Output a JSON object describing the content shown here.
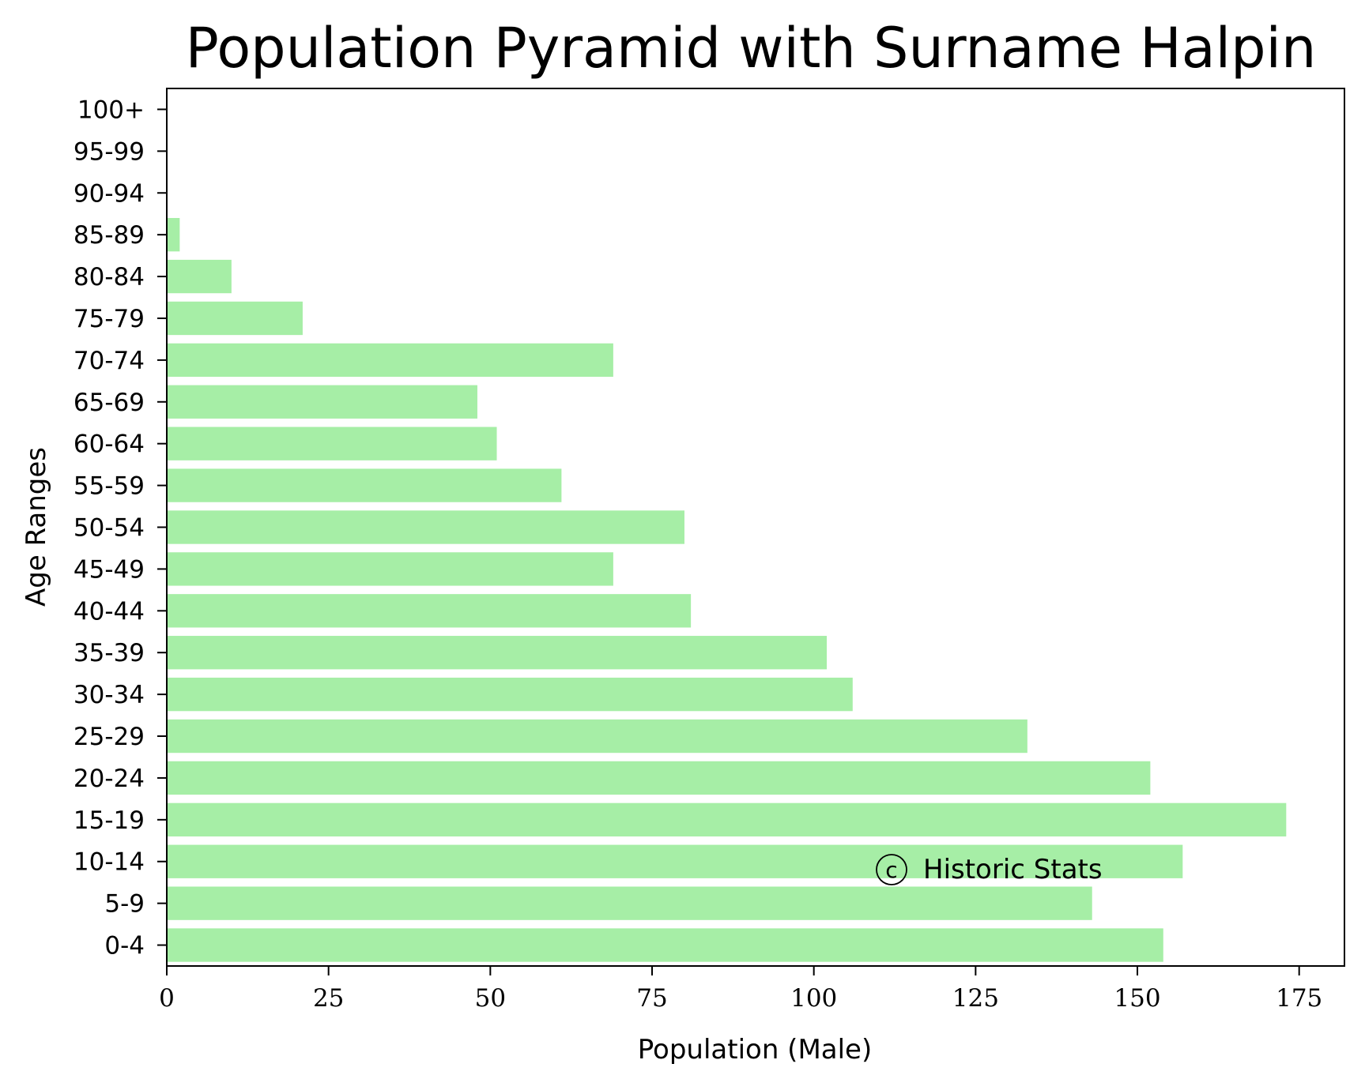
{
  "chart_data": {
    "type": "bar",
    "orientation": "horizontal",
    "title": "Population Pyramid with Surname Halpin",
    "xlabel": "Population (Male)",
    "ylabel": "Age Ranges",
    "categories": [
      "0-4",
      "5-9",
      "10-14",
      "15-19",
      "20-24",
      "25-29",
      "30-34",
      "35-39",
      "40-44",
      "45-49",
      "50-54",
      "55-59",
      "60-64",
      "65-69",
      "70-74",
      "75-79",
      "80-84",
      "85-89",
      "90-94",
      "95-99",
      "100+"
    ],
    "values": [
      154,
      143,
      157,
      173,
      152,
      133,
      106,
      102,
      81,
      69,
      80,
      61,
      51,
      48,
      69,
      21,
      10,
      2,
      0,
      0,
      0
    ],
    "xlim": [
      0,
      182
    ],
    "xticks": [
      0,
      25,
      50,
      75,
      100,
      125,
      150,
      175
    ],
    "grid": false,
    "bar_color": "#a6eea6",
    "watermark": "Historic Stats",
    "watermark_symbol": "c"
  }
}
